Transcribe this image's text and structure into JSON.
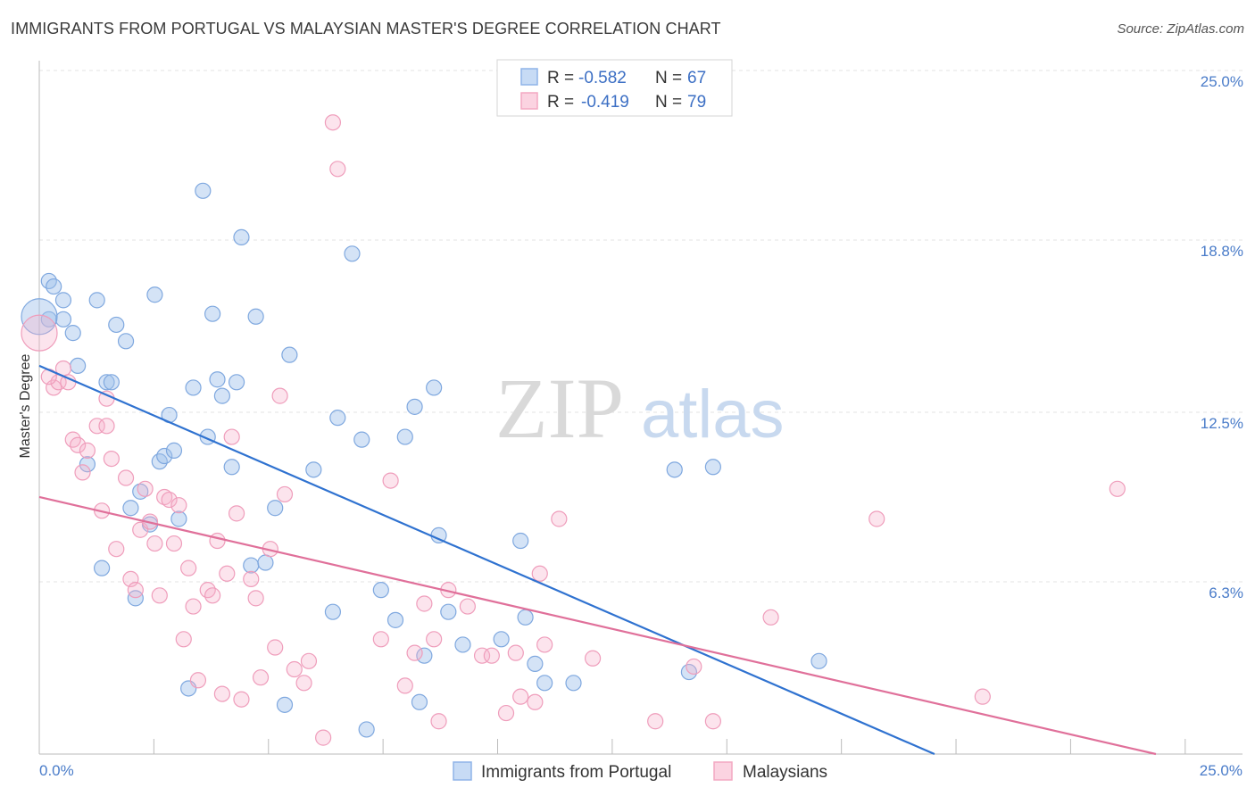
{
  "title": "IMMIGRANTS FROM PORTUGAL VS MALAYSIAN MASTER'S DEGREE CORRELATION CHART",
  "source": "Source: ZipAtlas.com",
  "watermark": {
    "zip": "ZIP",
    "atlas": "atlas"
  },
  "legend_top": [
    {
      "r_label": "R =",
      "r_value": "-0.582",
      "n_label": "N =",
      "n_value": "67"
    },
    {
      "r_label": "R =",
      "r_value": "-0.419",
      "n_label": "N =",
      "n_value": "79"
    }
  ],
  "chart_data": {
    "type": "scatter",
    "title": "IMMIGRANTS FROM PORTUGAL VS MALAYSIAN MASTER'S DEGREE CORRELATION CHART",
    "xlabel": "",
    "ylabel": "Master's Degree",
    "xlim": [
      0,
      25
    ],
    "ylim": [
      0,
      25
    ],
    "x_tick_labels": [
      "0.0%",
      "25.0%"
    ],
    "y_ticks": [
      6.3,
      12.5,
      18.8,
      25.0
    ],
    "y_tick_labels": [
      "6.3%",
      "12.5%",
      "18.8%",
      "25.0%"
    ],
    "grid": true,
    "legend_placement": "bottom-center",
    "colors": {
      "portugal": "#8fb4e8",
      "portugal_line": "#2f72d0",
      "malaysians": "#f3a8c2",
      "malaysians_line": "#e0709a",
      "tick": "#4a7cc9"
    },
    "series": [
      {
        "name": "Immigrants from Portugal",
        "trend": {
          "x": [
            0,
            18.6
          ],
          "y": [
            14.2,
            0
          ]
        },
        "points": [
          [
            0.2,
            15.9
          ],
          [
            0.2,
            17.3
          ],
          [
            0.3,
            17.1
          ],
          [
            0.5,
            16.6
          ],
          [
            0.5,
            15.9
          ],
          [
            0.7,
            15.4
          ],
          [
            0.8,
            14.2
          ],
          [
            1.0,
            10.6
          ],
          [
            1.2,
            16.6
          ],
          [
            1.3,
            6.8
          ],
          [
            1.4,
            13.6
          ],
          [
            1.5,
            13.6
          ],
          [
            1.6,
            15.7
          ],
          [
            1.8,
            15.1
          ],
          [
            1.9,
            9.0
          ],
          [
            2.0,
            5.7
          ],
          [
            2.1,
            9.6
          ],
          [
            2.3,
            8.4
          ],
          [
            2.4,
            16.8
          ],
          [
            2.5,
            10.7
          ],
          [
            2.6,
            10.9
          ],
          [
            2.7,
            12.4
          ],
          [
            2.8,
            11.1
          ],
          [
            2.9,
            8.6
          ],
          [
            3.1,
            2.4
          ],
          [
            3.2,
            13.4
          ],
          [
            3.4,
            20.6
          ],
          [
            3.5,
            11.6
          ],
          [
            3.6,
            16.1
          ],
          [
            3.7,
            13.7
          ],
          [
            3.8,
            13.1
          ],
          [
            4.0,
            10.5
          ],
          [
            4.1,
            13.6
          ],
          [
            4.2,
            18.9
          ],
          [
            4.4,
            6.9
          ],
          [
            4.5,
            16.0
          ],
          [
            4.7,
            7.0
          ],
          [
            4.9,
            9.0
          ],
          [
            5.1,
            1.8
          ],
          [
            5.2,
            14.6
          ],
          [
            5.7,
            10.4
          ],
          [
            6.1,
            5.2
          ],
          [
            6.2,
            12.3
          ],
          [
            6.5,
            18.3
          ],
          [
            6.7,
            11.5
          ],
          [
            6.8,
            0.9
          ],
          [
            7.1,
            6.0
          ],
          [
            7.4,
            4.9
          ],
          [
            7.6,
            11.6
          ],
          [
            7.8,
            12.7
          ],
          [
            7.9,
            1.9
          ],
          [
            8.0,
            3.6
          ],
          [
            8.2,
            13.4
          ],
          [
            8.3,
            8.0
          ],
          [
            8.5,
            5.2
          ],
          [
            8.8,
            4.0
          ],
          [
            9.6,
            4.2
          ],
          [
            10.0,
            7.8
          ],
          [
            10.1,
            5.0
          ],
          [
            10.3,
            3.3
          ],
          [
            10.5,
            2.6
          ],
          [
            11.1,
            2.6
          ],
          [
            13.2,
            10.4
          ],
          [
            13.5,
            3.0
          ],
          [
            14.0,
            10.5
          ],
          [
            16.2,
            3.4
          ],
          [
            0.0,
            16.0
          ]
        ]
      },
      {
        "name": "Malaysians",
        "trend": {
          "x": [
            0,
            23.2
          ],
          "y": [
            9.4,
            0
          ]
        },
        "points": [
          [
            0.0,
            15.4
          ],
          [
            0.3,
            13.4
          ],
          [
            0.4,
            13.6
          ],
          [
            0.5,
            14.1
          ],
          [
            0.6,
            13.6
          ],
          [
            0.7,
            11.5
          ],
          [
            0.8,
            11.3
          ],
          [
            0.9,
            10.3
          ],
          [
            1.0,
            11.1
          ],
          [
            1.2,
            12.0
          ],
          [
            1.3,
            8.9
          ],
          [
            1.4,
            13.0
          ],
          [
            1.4,
            12.0
          ],
          [
            1.5,
            10.8
          ],
          [
            1.6,
            7.5
          ],
          [
            1.8,
            10.1
          ],
          [
            1.9,
            6.4
          ],
          [
            2.0,
            6.0
          ],
          [
            2.1,
            8.2
          ],
          [
            2.2,
            9.7
          ],
          [
            2.3,
            8.5
          ],
          [
            2.4,
            7.7
          ],
          [
            2.5,
            5.8
          ],
          [
            2.6,
            9.4
          ],
          [
            2.7,
            9.3
          ],
          [
            2.8,
            7.7
          ],
          [
            2.9,
            9.1
          ],
          [
            3.0,
            4.2
          ],
          [
            3.1,
            6.8
          ],
          [
            3.2,
            5.4
          ],
          [
            3.3,
            2.7
          ],
          [
            3.5,
            6.0
          ],
          [
            3.6,
            5.8
          ],
          [
            3.7,
            7.8
          ],
          [
            3.8,
            2.2
          ],
          [
            3.9,
            6.6
          ],
          [
            4.0,
            11.6
          ],
          [
            4.1,
            8.8
          ],
          [
            4.2,
            2.0
          ],
          [
            4.4,
            6.4
          ],
          [
            4.5,
            5.7
          ],
          [
            4.6,
            2.8
          ],
          [
            4.8,
            7.5
          ],
          [
            4.9,
            3.9
          ],
          [
            5.0,
            13.1
          ],
          [
            5.1,
            9.5
          ],
          [
            5.3,
            3.1
          ],
          [
            5.5,
            2.6
          ],
          [
            5.6,
            3.4
          ],
          [
            5.9,
            0.6
          ],
          [
            7.1,
            4.2
          ],
          [
            7.3,
            10.0
          ],
          [
            7.6,
            2.5
          ],
          [
            7.8,
            3.7
          ],
          [
            8.0,
            5.5
          ],
          [
            8.2,
            4.2
          ],
          [
            8.3,
            1.2
          ],
          [
            8.5,
            6.0
          ],
          [
            8.9,
            5.4
          ],
          [
            9.2,
            3.6
          ],
          [
            9.4,
            3.6
          ],
          [
            9.7,
            1.5
          ],
          [
            9.9,
            3.7
          ],
          [
            10.0,
            2.1
          ],
          [
            10.3,
            1.9
          ],
          [
            10.4,
            6.6
          ],
          [
            10.5,
            4.0
          ],
          [
            10.8,
            8.6
          ],
          [
            11.5,
            3.5
          ],
          [
            12.8,
            1.2
          ],
          [
            13.6,
            3.2
          ],
          [
            14.0,
            1.2
          ],
          [
            15.2,
            5.0
          ],
          [
            17.4,
            8.6
          ],
          [
            19.6,
            2.1
          ],
          [
            22.4,
            9.7
          ],
          [
            6.1,
            23.1
          ],
          [
            6.2,
            21.4
          ],
          [
            0.2,
            13.8
          ]
        ]
      }
    ]
  },
  "bottom_legend": [
    {
      "label": "Immigrants from Portugal"
    },
    {
      "label": "Malaysians"
    }
  ]
}
